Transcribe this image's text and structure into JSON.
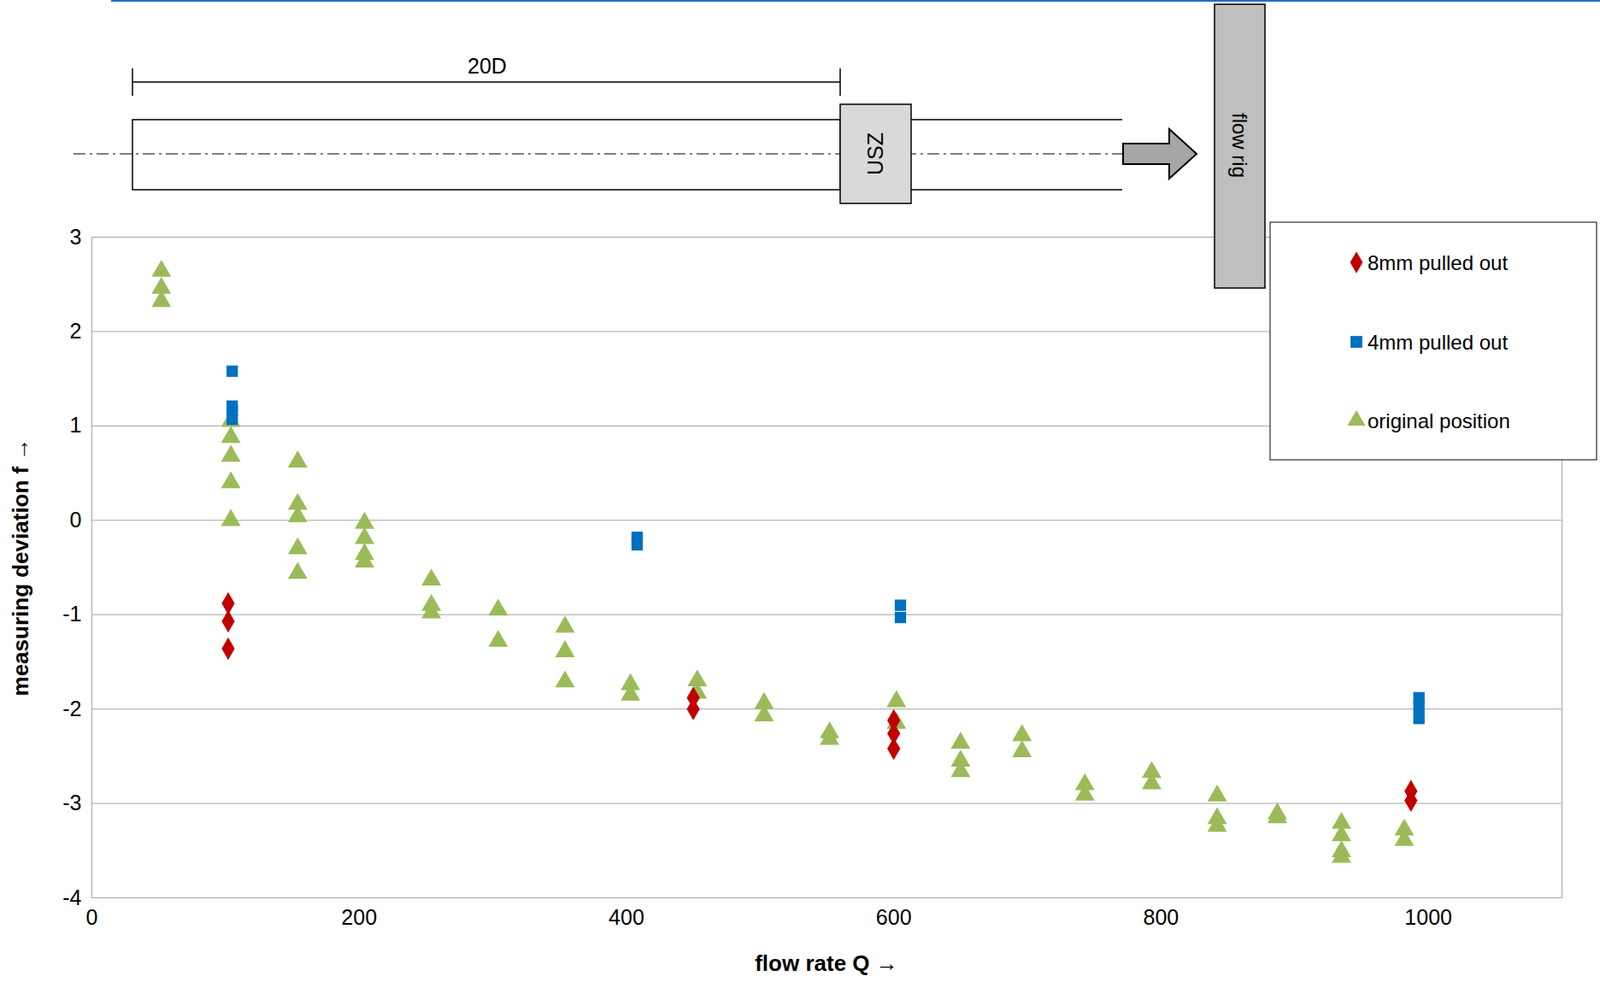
{
  "chart_data": {
    "type": "scatter",
    "x_label": "flow rate Q →",
    "y_label": "measuring deviation f →",
    "xlim": [
      0,
      1100
    ],
    "xticks": [
      0,
      200,
      400,
      600,
      800,
      1000
    ],
    "ylim": [
      -4,
      3
    ],
    "yticks": [
      -4,
      -3,
      -2,
      -1,
      0,
      1,
      2,
      3
    ],
    "grid": true,
    "legend": "top-right",
    "series": [
      {
        "name": "8mm pulled out",
        "color": "#c00000",
        "marker": "diamond",
        "x": [
          102,
          102,
          102,
          450,
          450,
          600,
          600,
          600,
          987,
          987
        ],
        "values": [
          -0.88,
          -1.07,
          -1.36,
          -1.88,
          -2.0,
          -2.12,
          -2.26,
          -2.42,
          -2.87,
          -2.97
        ]
      },
      {
        "name": "4mm pulled out",
        "color": "#0070c0",
        "marker": "square",
        "x": [
          105,
          105,
          105,
          105,
          408,
          408,
          605,
          605,
          993,
          993,
          993
        ],
        "values": [
          1.58,
          1.21,
          1.16,
          1.07,
          -0.18,
          -0.26,
          -0.9,
          -1.03,
          -1.88,
          -1.98,
          -2.1
        ]
      },
      {
        "name": "original position",
        "color": "#9bbb59",
        "marker": "triangle",
        "x": [
          52,
          52,
          52,
          104,
          104,
          104,
          104,
          104,
          154,
          154,
          154,
          154,
          154,
          204,
          204,
          204,
          204,
          254,
          254,
          254,
          304,
          304,
          354,
          354,
          354,
          403,
          403,
          453,
          453,
          503,
          503,
          552,
          552,
          602,
          602,
          650,
          650,
          650,
          696,
          696,
          743,
          743,
          793,
          793,
          842,
          842,
          842,
          887,
          887,
          935,
          935,
          935,
          935,
          982,
          982
        ],
        "values": [
          2.64,
          2.46,
          2.32,
          1.05,
          0.88,
          0.68,
          0.4,
          0.0,
          0.62,
          0.17,
          0.04,
          -0.3,
          -0.56,
          -0.03,
          -0.19,
          -0.36,
          -0.44,
          -0.63,
          -0.9,
          -0.98,
          -0.95,
          -1.28,
          -1.13,
          -1.39,
          -1.71,
          -1.74,
          -1.85,
          -1.7,
          -1.83,
          -1.94,
          -2.07,
          -2.25,
          -2.32,
          -1.92,
          -2.15,
          -2.36,
          -2.55,
          -2.66,
          -2.28,
          -2.45,
          -2.8,
          -2.91,
          -2.67,
          -2.79,
          -2.92,
          -3.16,
          -3.24,
          -3.11,
          -3.15,
          -3.21,
          -3.34,
          -3.51,
          -3.57,
          -3.28,
          -3.39
        ]
      }
    ]
  },
  "diagram": {
    "dimension_label": "20D",
    "meter_label": "USZ",
    "rig_label": "flow rig"
  }
}
